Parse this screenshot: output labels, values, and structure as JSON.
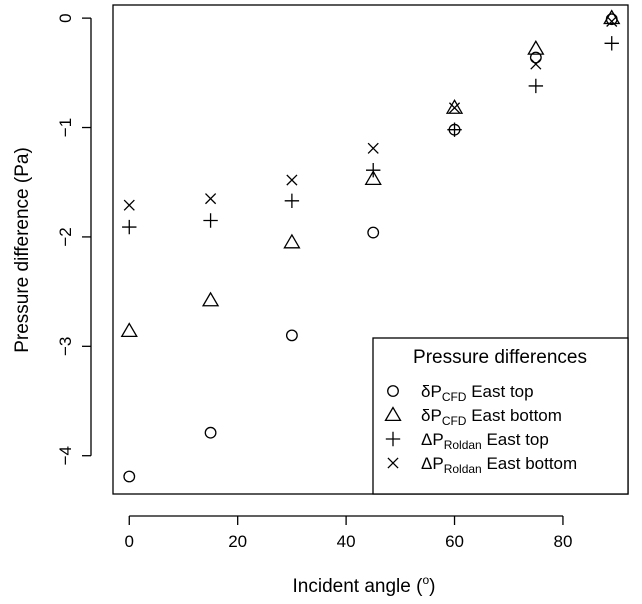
{
  "chart_data": {
    "type": "scatter",
    "xlabel": "Incident angle",
    "xlabel_unit_open": "(",
    "xlabel_unit_sup": "o",
    "xlabel_unit_close": ")",
    "ylabel": "Pressure difference (Pa)",
    "xlim": [
      -3,
      92
    ],
    "ylim": [
      -4.35,
      0.12
    ],
    "xticks": [
      0,
      20,
      40,
      60,
      80
    ],
    "yticks": [
      0,
      -1,
      -2,
      -3,
      -4
    ],
    "xtick_labels": [
      "0",
      "20",
      "40",
      "60",
      "80"
    ],
    "ytick_labels": [
      "0",
      "−1",
      "−2",
      "−3",
      "−4"
    ],
    "grid": false,
    "legend": {
      "title": "Pressure differences",
      "position": "bottom-right",
      "entries": [
        {
          "symbol_char": "δ",
          "base": "P",
          "sub": "CFD",
          "suffix": "East top",
          "marker": "circle"
        },
        {
          "symbol_char": "δ",
          "base": "P",
          "sub": "CFD",
          "suffix": "East bottom",
          "marker": "triangle"
        },
        {
          "symbol_char": "Δ",
          "base": "P",
          "sub": "Roldan",
          "suffix": "East top",
          "marker": "plus"
        },
        {
          "symbol_char": "Δ",
          "base": "P",
          "sub": "Roldan",
          "suffix": "East bottom",
          "marker": "cross"
        }
      ]
    },
    "series": [
      {
        "marker": "circle",
        "x": [
          0,
          15,
          30,
          45,
          60,
          75,
          89
        ],
        "y": [
          -4.19,
          -3.79,
          -2.9,
          -1.96,
          -1.02,
          -0.36,
          -0.01
        ]
      },
      {
        "marker": "triangle",
        "x": [
          0,
          15,
          30,
          45,
          60,
          75,
          89
        ],
        "y": [
          -2.86,
          -2.58,
          -2.05,
          -1.47,
          -0.82,
          -0.28,
          0.0
        ]
      },
      {
        "marker": "plus",
        "x": [
          0,
          15,
          30,
          45,
          60,
          75,
          89
        ],
        "y": [
          -1.91,
          -1.85,
          -1.67,
          -1.39,
          -1.02,
          -0.62,
          -0.23
        ]
      },
      {
        "marker": "cross",
        "x": [
          0,
          15,
          30,
          45,
          60,
          75,
          89
        ],
        "y": [
          -1.71,
          -1.65,
          -1.48,
          -1.19,
          -0.82,
          -0.42,
          -0.03
        ]
      }
    ]
  }
}
